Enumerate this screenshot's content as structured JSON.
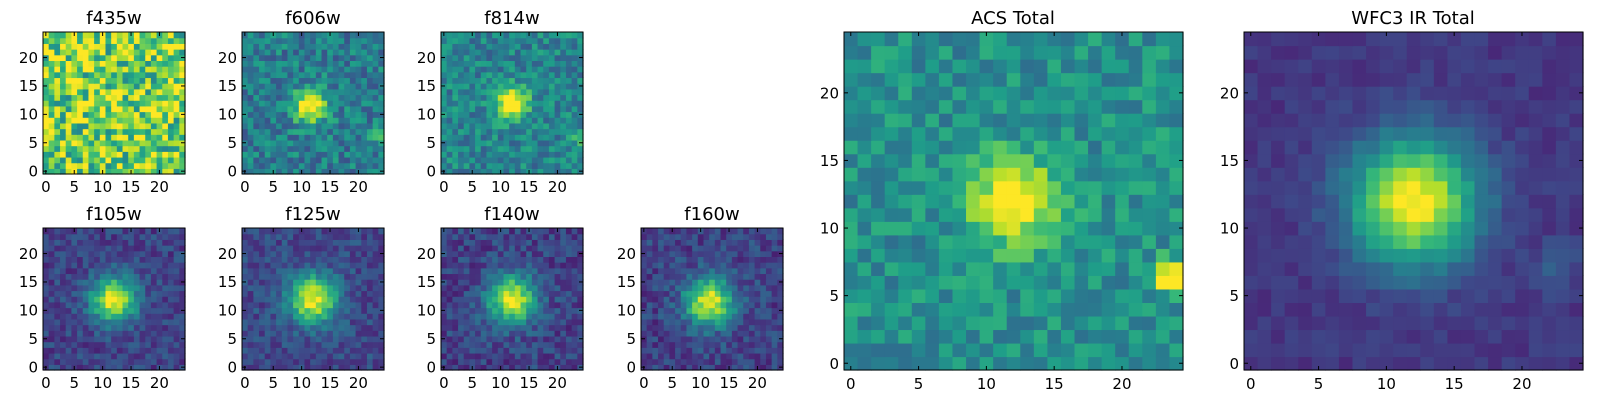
{
  "figure": {
    "colormap": "viridis",
    "colormap_stops": [
      "#440154",
      "#482878",
      "#3e4989",
      "#31688e",
      "#26828e",
      "#1f9e89",
      "#35b779",
      "#6ece58",
      "#b5de2b",
      "#fde725"
    ]
  },
  "chart_data": [
    {
      "type": "heatmap",
      "title": "f435w",
      "grid": false,
      "xlim": [
        0,
        24
      ],
      "ylim": [
        0,
        24
      ],
      "xticks": [
        0,
        5,
        10,
        15,
        20
      ],
      "yticks": [
        0,
        5,
        10,
        15,
        20
      ],
      "source": {
        "center": [
          12,
          12
        ],
        "sigma": 3.0,
        "peak": 0.05,
        "background": 0.78,
        "noise": 0.32
      },
      "seed": 11
    },
    {
      "type": "heatmap",
      "title": "f606w",
      "grid": false,
      "xlim": [
        0,
        24
      ],
      "ylim": [
        0,
        24
      ],
      "xticks": [
        0,
        5,
        10,
        15,
        20
      ],
      "yticks": [
        0,
        5,
        10,
        15,
        20
      ],
      "source": {
        "center": [
          11.5,
          11.5
        ],
        "sigma": 2.0,
        "peak": 0.7,
        "background": 0.42,
        "noise": 0.17
      },
      "secondary": {
        "center": [
          23.5,
          6.5
        ],
        "sigma": 0.9,
        "peak": 0.5
      },
      "seed": 23
    },
    {
      "type": "heatmap",
      "title": "f814w",
      "grid": false,
      "xlim": [
        0,
        24
      ],
      "ylim": [
        0,
        24
      ],
      "xticks": [
        0,
        5,
        10,
        15,
        20
      ],
      "yticks": [
        0,
        5,
        10,
        15,
        20
      ],
      "source": {
        "center": [
          12,
          12
        ],
        "sigma": 1.9,
        "peak": 0.72,
        "background": 0.45,
        "noise": 0.16
      },
      "secondary": {
        "center": [
          23.5,
          6
        ],
        "sigma": 0.8,
        "peak": 0.35
      },
      "seed": 37
    },
    {
      "type": "heatmap",
      "title": "f105w",
      "grid": false,
      "xlim": [
        0,
        24
      ],
      "ylim": [
        0,
        24
      ],
      "xticks": [
        0,
        5,
        10,
        15,
        20
      ],
      "yticks": [
        0,
        5,
        10,
        15,
        20
      ],
      "source": {
        "center": [
          12,
          12
        ],
        "sigma": 2.8,
        "peak": 0.78,
        "background": 0.2,
        "noise": 0.11
      },
      "seed": 41
    },
    {
      "type": "heatmap",
      "title": "f125w",
      "grid": false,
      "xlim": [
        0,
        24
      ],
      "ylim": [
        0,
        24
      ],
      "xticks": [
        0,
        5,
        10,
        15,
        20
      ],
      "yticks": [
        0,
        5,
        10,
        15,
        20
      ],
      "source": {
        "center": [
          12,
          12
        ],
        "sigma": 3.0,
        "peak": 0.76,
        "background": 0.22,
        "noise": 0.11
      },
      "seed": 53
    },
    {
      "type": "heatmap",
      "title": "f140w",
      "grid": false,
      "xlim": [
        0,
        24
      ],
      "ylim": [
        0,
        24
      ],
      "xticks": [
        0,
        5,
        10,
        15,
        20
      ],
      "yticks": [
        0,
        5,
        10,
        15,
        20
      ],
      "source": {
        "center": [
          12,
          12
        ],
        "sigma": 3.0,
        "peak": 0.76,
        "background": 0.2,
        "noise": 0.12
      },
      "seed": 67
    },
    {
      "type": "heatmap",
      "title": "f160w",
      "grid": false,
      "xlim": [
        0,
        24
      ],
      "ylim": [
        0,
        24
      ],
      "xticks": [
        0,
        5,
        10,
        15,
        20
      ],
      "yticks": [
        0,
        5,
        10,
        15,
        20
      ],
      "source": {
        "center": [
          11.5,
          11.5
        ],
        "sigma": 3.0,
        "peak": 0.76,
        "background": 0.2,
        "noise": 0.12
      },
      "seed": 79
    },
    {
      "type": "heatmap",
      "title": "ACS Total",
      "grid": false,
      "xlim": [
        0,
        24
      ],
      "ylim": [
        0,
        24
      ],
      "xticks": [
        0,
        5,
        10,
        15,
        20
      ],
      "yticks": [
        0,
        5,
        10,
        15,
        20
      ],
      "source": {
        "center": [
          12,
          12
        ],
        "sigma": 2.2,
        "peak": 0.62,
        "background": 0.5,
        "noise": 0.14
      },
      "secondary": {
        "center": [
          23.5,
          6.5
        ],
        "sigma": 0.9,
        "peak": 0.5
      },
      "seed": 97
    },
    {
      "type": "heatmap",
      "title": "WFC3 IR Total",
      "grid": false,
      "xlim": [
        0,
        24
      ],
      "ylim": [
        0,
        24
      ],
      "xticks": [
        0,
        5,
        10,
        15,
        20
      ],
      "yticks": [
        0,
        5,
        10,
        15,
        20
      ],
      "source": {
        "center": [
          12,
          12
        ],
        "sigma": 3.3,
        "peak": 0.85,
        "background": 0.16,
        "noise": 0.05
      },
      "secondary": {
        "center": [
          22.5,
          7
        ],
        "sigma": 1.2,
        "peak": 0.15
      },
      "seed": 103
    }
  ]
}
